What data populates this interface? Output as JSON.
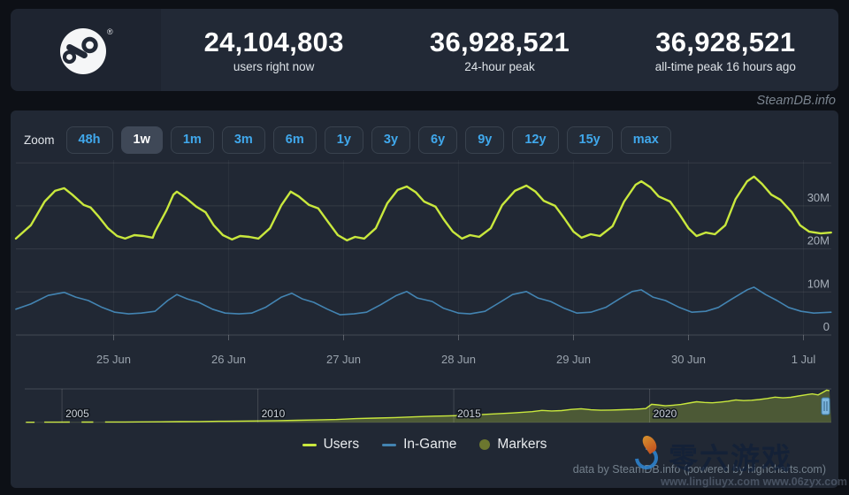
{
  "header": {
    "stats": [
      {
        "value": "24,104,803",
        "label": "users right now"
      },
      {
        "value": "36,928,521",
        "label": "24-hour peak"
      },
      {
        "value": "36,928,521",
        "label": "all-time peak 16 hours ago"
      }
    ]
  },
  "icons": {
    "header_logo": "steam-logo",
    "navigator_handle": "drag-handle-icon",
    "watermark_logo": "flame-swirl-logo"
  },
  "attribution": {
    "site": "SteamDB.info"
  },
  "toolbar": {
    "zoom_label": "Zoom",
    "buttons": [
      {
        "label": "48h",
        "active": false
      },
      {
        "label": "1w",
        "active": true
      },
      {
        "label": "1m",
        "active": false
      },
      {
        "label": "3m",
        "active": false
      },
      {
        "label": "6m",
        "active": false
      },
      {
        "label": "1y",
        "active": false
      },
      {
        "label": "3y",
        "active": false
      },
      {
        "label": "6y",
        "active": false
      },
      {
        "label": "9y",
        "active": false
      },
      {
        "label": "12y",
        "active": false
      },
      {
        "label": "15y",
        "active": false
      },
      {
        "label": "max",
        "active": false
      }
    ]
  },
  "chart_data": {
    "type": "line",
    "unit": "millions of concurrent users",
    "y_axis": {
      "max": 40,
      "grid_values": [
        40,
        30,
        20,
        10,
        0
      ],
      "ticks": [
        {
          "label": "30M",
          "value": 30
        },
        {
          "label": "20M",
          "value": 20
        },
        {
          "label": "10M",
          "value": 10
        },
        {
          "label": "0",
          "value": 0
        }
      ]
    },
    "x_axis": {
      "ticks": [
        {
          "label": "25 Jun",
          "day": 0.85
        },
        {
          "label": "26 Jun",
          "day": 1.85
        },
        {
          "label": "27 Jun",
          "day": 2.85
        },
        {
          "label": "28 Jun",
          "day": 3.85
        },
        {
          "label": "29 Jun",
          "day": 4.85
        },
        {
          "label": "30 Jun",
          "day": 5.85
        },
        {
          "label": "1 Jul",
          "day": 6.85
        }
      ]
    },
    "series": [
      {
        "name": "Users",
        "color": "#c9e83d",
        "points": [
          [
            0,
            22.4
          ],
          [
            0.13,
            25.5
          ],
          [
            0.25,
            31
          ],
          [
            0.34,
            33.5
          ],
          [
            0.42,
            34.1
          ],
          [
            0.49,
            32.6
          ],
          [
            0.59,
            30.2
          ],
          [
            0.65,
            29.6
          ],
          [
            0.72,
            27.5
          ],
          [
            0.8,
            24.8
          ],
          [
            0.88,
            23
          ],
          [
            0.95,
            22.4
          ],
          [
            1.03,
            23.2
          ],
          [
            1.11,
            23
          ],
          [
            1.19,
            22.6
          ],
          [
            1.21,
            24
          ],
          [
            1.31,
            29
          ],
          [
            1.37,
            32.6
          ],
          [
            1.4,
            33.3
          ],
          [
            1.48,
            31.8
          ],
          [
            1.57,
            29.8
          ],
          [
            1.65,
            28.5
          ],
          [
            1.72,
            25.5
          ],
          [
            1.8,
            23.2
          ],
          [
            1.88,
            22.2
          ],
          [
            1.95,
            23
          ],
          [
            2.03,
            22.8
          ],
          [
            2.11,
            22.4
          ],
          [
            2.21,
            24.8
          ],
          [
            2.31,
            30.2
          ],
          [
            2.39,
            33.3
          ],
          [
            2.46,
            32.2
          ],
          [
            2.55,
            30.2
          ],
          [
            2.63,
            29.4
          ],
          [
            2.72,
            26.1
          ],
          [
            2.8,
            23.2
          ],
          [
            2.88,
            22
          ],
          [
            2.95,
            22.8
          ],
          [
            3.03,
            22.4
          ],
          [
            3.13,
            24.8
          ],
          [
            3.23,
            30.6
          ],
          [
            3.32,
            33.7
          ],
          [
            3.4,
            34.5
          ],
          [
            3.48,
            33.1
          ],
          [
            3.55,
            31
          ],
          [
            3.65,
            29.8
          ],
          [
            3.72,
            26.9
          ],
          [
            3.8,
            24
          ],
          [
            3.88,
            22.4
          ],
          [
            3.95,
            23.2
          ],
          [
            4.03,
            22.8
          ],
          [
            4.13,
            24.8
          ],
          [
            4.23,
            30.2
          ],
          [
            4.34,
            33.5
          ],
          [
            4.44,
            34.7
          ],
          [
            4.52,
            33.3
          ],
          [
            4.59,
            31.2
          ],
          [
            4.69,
            30
          ],
          [
            4.77,
            27.1
          ],
          [
            4.85,
            24
          ],
          [
            4.92,
            22.6
          ],
          [
            5,
            23.4
          ],
          [
            5.08,
            23
          ],
          [
            5.19,
            25.3
          ],
          [
            5.29,
            31
          ],
          [
            5.39,
            34.9
          ],
          [
            5.44,
            35.7
          ],
          [
            5.52,
            34.3
          ],
          [
            5.59,
            32.2
          ],
          [
            5.69,
            31
          ],
          [
            5.77,
            28.1
          ],
          [
            5.85,
            24.8
          ],
          [
            5.92,
            23
          ],
          [
            6,
            23.8
          ],
          [
            6.08,
            23.4
          ],
          [
            6.17,
            25.5
          ],
          [
            6.26,
            31.6
          ],
          [
            6.36,
            35.7
          ],
          [
            6.42,
            36.8
          ],
          [
            6.49,
            35.1
          ],
          [
            6.57,
            32.6
          ],
          [
            6.65,
            31.4
          ],
          [
            6.75,
            28.5
          ],
          [
            6.82,
            25.5
          ],
          [
            6.9,
            24
          ],
          [
            7,
            23.6
          ],
          [
            7.09,
            23.8
          ]
        ]
      },
      {
        "name": "In-Game",
        "color": "#4384b2",
        "points": [
          [
            0,
            6
          ],
          [
            0.13,
            7.2
          ],
          [
            0.28,
            9.2
          ],
          [
            0.42,
            9.9
          ],
          [
            0.52,
            8.8
          ],
          [
            0.63,
            8
          ],
          [
            0.75,
            6.4
          ],
          [
            0.86,
            5.3
          ],
          [
            0.98,
            4.9
          ],
          [
            1.09,
            5.1
          ],
          [
            1.21,
            5.5
          ],
          [
            1.32,
            8
          ],
          [
            1.4,
            9.4
          ],
          [
            1.49,
            8.4
          ],
          [
            1.59,
            7.6
          ],
          [
            1.71,
            6
          ],
          [
            1.82,
            5.1
          ],
          [
            1.94,
            4.9
          ],
          [
            2.05,
            5.1
          ],
          [
            2.17,
            6.4
          ],
          [
            2.31,
            8.8
          ],
          [
            2.4,
            9.7
          ],
          [
            2.49,
            8.4
          ],
          [
            2.59,
            7.6
          ],
          [
            2.71,
            6
          ],
          [
            2.82,
            4.7
          ],
          [
            2.94,
            4.9
          ],
          [
            3.05,
            5.3
          ],
          [
            3.17,
            7
          ],
          [
            3.31,
            9.2
          ],
          [
            3.4,
            10.1
          ],
          [
            3.49,
            8.6
          ],
          [
            3.62,
            7.8
          ],
          [
            3.72,
            6.2
          ],
          [
            3.85,
            5.1
          ],
          [
            3.95,
            4.9
          ],
          [
            4.08,
            5.5
          ],
          [
            4.21,
            7.6
          ],
          [
            4.32,
            9.4
          ],
          [
            4.44,
            10.1
          ],
          [
            4.54,
            8.6
          ],
          [
            4.65,
            7.8
          ],
          [
            4.77,
            6.2
          ],
          [
            4.88,
            5.1
          ],
          [
            5,
            5.3
          ],
          [
            5.13,
            6.4
          ],
          [
            5.25,
            8.4
          ],
          [
            5.36,
            10.1
          ],
          [
            5.44,
            10.5
          ],
          [
            5.54,
            8.8
          ],
          [
            5.65,
            8
          ],
          [
            5.77,
            6.4
          ],
          [
            5.88,
            5.3
          ],
          [
            6,
            5.5
          ],
          [
            6.11,
            6.4
          ],
          [
            6.23,
            8.4
          ],
          [
            6.36,
            10.5
          ],
          [
            6.42,
            11.1
          ],
          [
            6.52,
            9.4
          ],
          [
            6.62,
            8
          ],
          [
            6.72,
            6.4
          ],
          [
            6.83,
            5.5
          ],
          [
            6.94,
            5.1
          ],
          [
            7.09,
            5.3
          ]
        ]
      }
    ],
    "navigator": {
      "year_ticks": [
        {
          "label": "2005",
          "year": 2005
        },
        {
          "label": "2010",
          "year": 2010
        },
        {
          "label": "2015",
          "year": 2015
        },
        {
          "label": "2020",
          "year": 2020
        }
      ],
      "series": {
        "name": "Users (all time)",
        "color": "#c9e83d",
        "points": [
          [
            2004.08,
            0.3
          ],
          [
            2004.3,
            0.3
          ],
          null,
          [
            2004.55,
            0.35
          ],
          [
            2004.9,
            0.4
          ],
          [
            2005.2,
            0.45
          ],
          null,
          [
            2005.5,
            0.5
          ],
          [
            2005.8,
            0.5
          ],
          null,
          [
            2006.1,
            0.55
          ],
          [
            2006.6,
            0.6
          ],
          [
            2007,
            0.7
          ],
          [
            2007.5,
            0.8
          ],
          [
            2008,
            1
          ],
          [
            2008.5,
            1.1
          ],
          [
            2009,
            1.3
          ],
          [
            2009.5,
            1.5
          ],
          [
            2010,
            1.7
          ],
          [
            2010.5,
            2
          ],
          [
            2011,
            2.4
          ],
          [
            2011.5,
            2.8
          ],
          [
            2012,
            3.3
          ],
          [
            2012.5,
            4.2
          ],
          [
            2013,
            4.8
          ],
          [
            2013.5,
            5.4
          ],
          [
            2014,
            6.2
          ],
          [
            2014.5,
            6.9
          ],
          [
            2015,
            7.4
          ],
          [
            2015.5,
            8.3
          ],
          [
            2016,
            9.3
          ],
          [
            2016.5,
            10.4
          ],
          [
            2017,
            11.8
          ],
          [
            2017.25,
            13.2
          ],
          [
            2017.5,
            12.6
          ],
          [
            2017.75,
            13
          ],
          [
            2018,
            14.2
          ],
          [
            2018.25,
            15
          ],
          [
            2018.5,
            13.8
          ],
          [
            2018.75,
            13.4
          ],
          [
            2019,
            13.6
          ],
          [
            2019.3,
            13.9
          ],
          [
            2019.6,
            14.3
          ],
          [
            2019.9,
            15.2
          ],
          [
            2020.05,
            19.8
          ],
          [
            2020.2,
            19.2
          ],
          [
            2020.4,
            18.2
          ],
          [
            2020.6,
            18.8
          ],
          [
            2020.8,
            19.6
          ],
          [
            2021,
            21.2
          ],
          [
            2021.2,
            22.6
          ],
          [
            2021.4,
            21.8
          ],
          [
            2021.6,
            21.4
          ],
          [
            2021.8,
            22.2
          ],
          [
            2022,
            23.2
          ],
          [
            2022.2,
            24.6
          ],
          [
            2022.4,
            23.8
          ],
          [
            2022.6,
            24.2
          ],
          [
            2022.8,
            25
          ],
          [
            2023,
            26.2
          ],
          [
            2023.2,
            27.6
          ],
          [
            2023.4,
            26.8
          ],
          [
            2023.6,
            27.4
          ],
          [
            2023.8,
            28.8
          ],
          [
            2024,
            30.2
          ],
          [
            2024.15,
            31.2
          ],
          [
            2024.3,
            30
          ],
          [
            2024.42,
            32.8
          ],
          [
            2024.52,
            35.2
          ],
          [
            2024.59,
            34.6
          ]
        ]
      }
    }
  },
  "legend": {
    "items": [
      {
        "label": "Users",
        "color": "#c9e83d",
        "marker": "line"
      },
      {
        "label": "In-Game",
        "color": "#4384b2",
        "marker": "line"
      },
      {
        "label": "Markers",
        "color": "#6c772f",
        "marker": "circle"
      }
    ]
  },
  "footer": {
    "credits": "data by SteamDB.info (powered by highcharts.com)"
  },
  "watermark": {
    "text": "零六游戏",
    "urls": "www.lingliuyx.com   www.06zyx.com"
  }
}
